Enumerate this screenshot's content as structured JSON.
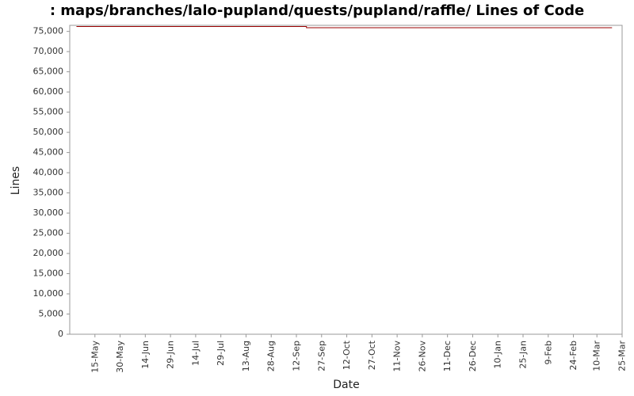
{
  "chart_data": {
    "type": "line",
    "title": ": maps/branches/lalo-pupland/quests/pupland/raffle/ Lines of Code",
    "x_label": "Date",
    "y_label": "Lines",
    "x": [
      "4-May",
      "18-Sep",
      "18-Sep",
      "19-Mar"
    ],
    "series": [
      {
        "name": "Lines",
        "color": "#990000",
        "values": [
          76200,
          76200,
          75900,
          75900
        ]
      }
    ],
    "xlim": [
      "30-Apr",
      "25-Mar"
    ],
    "xticks": [
      "15-May",
      "30-May",
      "14-Jun",
      "29-Jun",
      "14-Jul",
      "29-Jul",
      "13-Aug",
      "28-Aug",
      "12-Sep",
      "27-Sep",
      "12-Oct",
      "27-Oct",
      "11-Nov",
      "26-Nov",
      "11-Dec",
      "26-Dec",
      "10-Jan",
      "25-Jan",
      "9-Feb",
      "24-Feb",
      "10-Mar",
      "25-Mar"
    ],
    "ylim": [
      0,
      76500
    ],
    "yticks": [
      0,
      {
        "value": 5000,
        "label": "5,000"
      },
      {
        "value": 10000,
        "label": "10,000"
      },
      {
        "value": 15000,
        "label": "15,000"
      },
      {
        "value": 20000,
        "label": "20,000"
      },
      {
        "value": 25000,
        "label": "25,000"
      },
      {
        "value": 30000,
        "label": "30,000"
      },
      {
        "value": 35000,
        "label": "35,000"
      },
      {
        "value": 40000,
        "label": "40,000"
      },
      {
        "value": 45000,
        "label": "45,000"
      },
      {
        "value": 50000,
        "label": "50,000"
      },
      {
        "value": 55000,
        "label": "55,000"
      },
      {
        "value": 60000,
        "label": "60,000"
      },
      {
        "value": 65000,
        "label": "65,000"
      },
      {
        "value": 70000,
        "label": "70,000"
      },
      {
        "value": 75000,
        "label": "75,000"
      }
    ],
    "grid": false
  }
}
